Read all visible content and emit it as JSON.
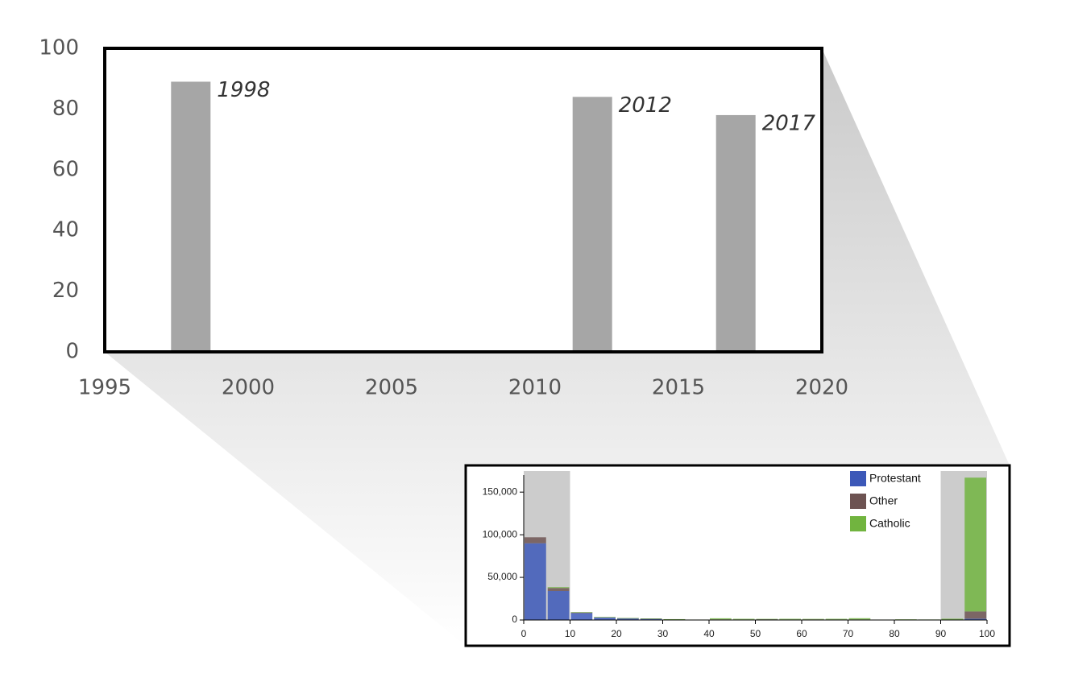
{
  "chart_data": [
    {
      "type": "bar",
      "x": [
        1998,
        2012,
        2017
      ],
      "values": [
        89,
        84,
        78
      ],
      "data_labels": [
        "1998",
        "2012",
        "2017"
      ],
      "xlim": [
        1995,
        2020
      ],
      "ylim": [
        0,
        100
      ],
      "xticks": [
        "1995",
        "2000",
        "2005",
        "2010",
        "2015",
        "2020"
      ],
      "yticks": [
        "0",
        "20",
        "40",
        "60",
        "80",
        "100"
      ],
      "bar_color": "#a6a6a6",
      "frame_color": "#000000",
      "grid": false
    },
    {
      "type": "bar",
      "stacked": true,
      "bin_width": 5,
      "bin_starts": [
        0,
        5,
        10,
        15,
        20,
        25,
        30,
        35,
        40,
        45,
        50,
        55,
        60,
        65,
        70,
        75,
        80,
        85,
        90,
        95
      ],
      "series": [
        {
          "name": "Protestant",
          "color": "#3c58b8",
          "values": [
            90000,
            34000,
            8000,
            3000,
            2000,
            1500,
            800,
            300,
            500,
            400,
            600,
            400,
            300,
            300,
            300,
            200,
            200,
            200,
            300,
            1500
          ]
        },
        {
          "name": "Other",
          "color": "#6d5352",
          "values": [
            7000,
            3500,
            1000,
            300,
            200,
            200,
            100,
            100,
            200,
            200,
            200,
            200,
            400,
            300,
            300,
            100,
            100,
            100,
            200,
            8500
          ]
        },
        {
          "name": "Catholic",
          "color": "#71b43f",
          "values": [
            0,
            1000,
            200,
            200,
            100,
            100,
            100,
            100,
            1300,
            800,
            500,
            800,
            600,
            800,
            1500,
            200,
            500,
            300,
            1000,
            157000
          ]
        }
      ],
      "highlight_ranges": [
        [
          0,
          10
        ],
        [
          90,
          100
        ]
      ],
      "xlim": [
        0,
        100
      ],
      "ylim": [
        0,
        170000
      ],
      "xticks": [
        "0",
        "10",
        "20",
        "30",
        "40",
        "50",
        "60",
        "70",
        "80",
        "90",
        "100"
      ],
      "yticks": [
        "0",
        "50,000",
        "100,000",
        "150,000"
      ],
      "legend": [
        "Protestant",
        "Other",
        "Catholic"
      ],
      "legend_position": "top-right"
    }
  ]
}
